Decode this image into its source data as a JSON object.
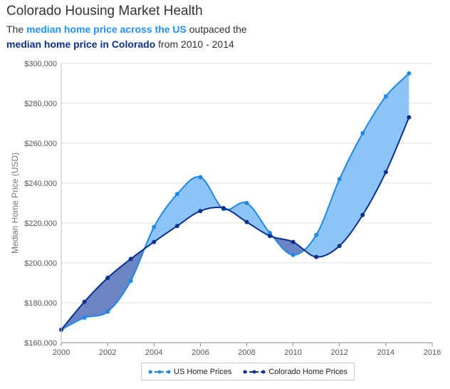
{
  "header": {
    "title": "Colorado Housing Market Health",
    "line1_pre": "The ",
    "line1_us": "median home price across the US",
    "line1_post": " outpaced the",
    "line2_co": "median home price in Colorado",
    "line2_post": " from 2010 - 2014"
  },
  "chart_data": {
    "type": "line",
    "title": "Colorado Housing Market Health",
    "xlabel": "",
    "ylabel": "Median Home Price (USD)",
    "xlim": [
      2000,
      2016
    ],
    "ylim": [
      160000,
      300000
    ],
    "x_ticks": [
      2000,
      2002,
      2004,
      2006,
      2008,
      2010,
      2012,
      2014,
      2016
    ],
    "x_tick_labels": [
      "2000",
      "2002",
      "2004",
      "2006",
      "2008",
      "2010",
      "2012",
      "2014",
      "2016"
    ],
    "y_ticks": [
      160000,
      180000,
      200000,
      220000,
      240000,
      260000,
      280000,
      300000
    ],
    "y_tick_labels": [
      "$160,000",
      "$180,000",
      "$200,000",
      "$220,000",
      "$240,000",
      "$260,000",
      "$280,000",
      "$300,000"
    ],
    "x": [
      2000,
      2001,
      2002,
      2003,
      2004,
      2005,
      2006,
      2007,
      2008,
      2009,
      2010,
      2011,
      2012,
      2013,
      2014,
      2015
    ],
    "series": [
      {
        "name": "US Home Prices",
        "color": "#1e88e5",
        "values": [
          166500,
          172500,
          175500,
          191000,
          218000,
          234500,
          243000,
          227000,
          230000,
          215000,
          204000,
          214000,
          242000,
          265000,
          283500,
          295000
        ]
      },
      {
        "name": "Colorado Home Prices",
        "color": "#0b2f8c",
        "values": [
          166500,
          180500,
          192500,
          202000,
          210500,
          218500,
          226000,
          227500,
          220500,
          213500,
          210500,
          203000,
          208500,
          224000,
          245500,
          273000
        ]
      }
    ],
    "fill_us_above_color": "#8cc4f8",
    "fill_co_above_color": "#6b84c4",
    "legend_position": "bottom-center",
    "grid": true
  },
  "legend": {
    "us_label": "US Home Prices",
    "co_label": "Colorado Home Prices"
  }
}
